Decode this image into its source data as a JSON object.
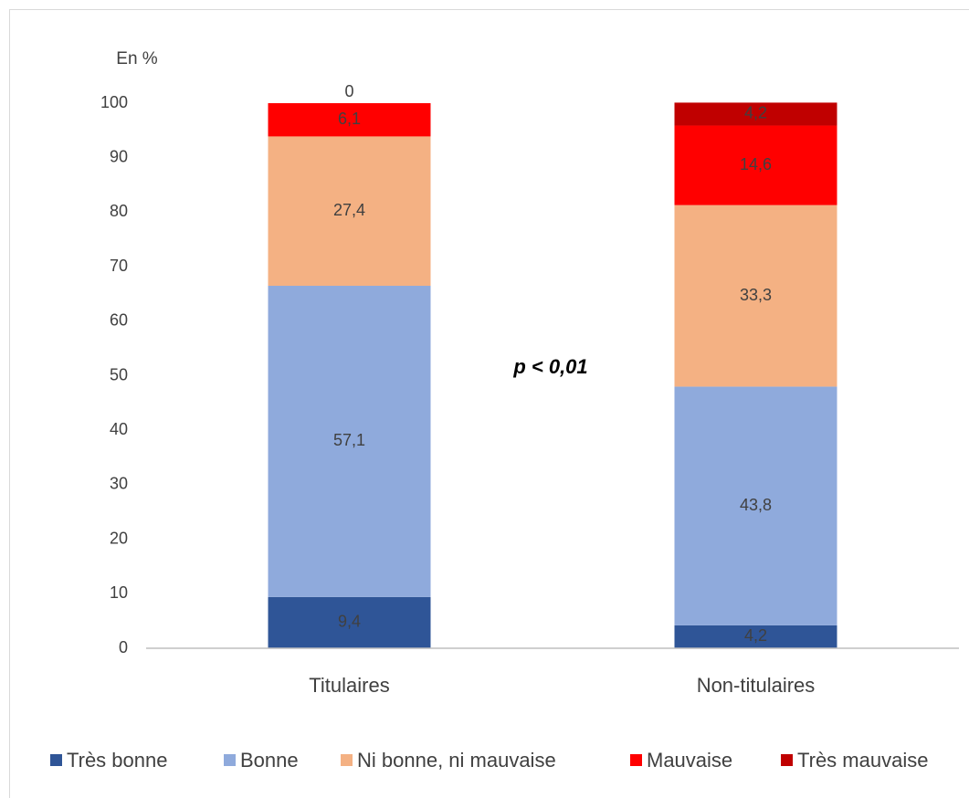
{
  "chart_data": {
    "type": "stacked_bar",
    "y_axis_label": "En %",
    "annotation": "p < 0,01",
    "categories": [
      "Titulaires",
      "Non-titulaires"
    ],
    "series": [
      {
        "name": "Très bonne",
        "color": "#2f5597",
        "values": [
          9.4,
          4.2
        ],
        "value_labels": [
          "9,4",
          "4,2"
        ]
      },
      {
        "name": "Bonne",
        "color": "#8faadc",
        "values": [
          57.1,
          43.8
        ],
        "value_labels": [
          "57,1",
          "43,8"
        ]
      },
      {
        "name": "Ni bonne, ni mauvaise",
        "color": "#f4b183",
        "values": [
          27.4,
          33.3
        ],
        "value_labels": [
          "27,4",
          "33,3"
        ]
      },
      {
        "name": "Mauvaise",
        "color": "#ff0000",
        "values": [
          6.1,
          14.6
        ],
        "value_labels": [
          "6,1",
          "14,6"
        ]
      },
      {
        "name": "Très mauvaise",
        "color": "#c00000",
        "values": [
          0,
          4.2
        ],
        "value_labels": [
          "0",
          "4,2"
        ]
      }
    ],
    "ylim": [
      0,
      100
    ],
    "yticks": [
      0,
      10,
      20,
      30,
      40,
      50,
      60,
      70,
      80,
      90,
      100
    ],
    "grid": false,
    "legend": "bottom"
  }
}
